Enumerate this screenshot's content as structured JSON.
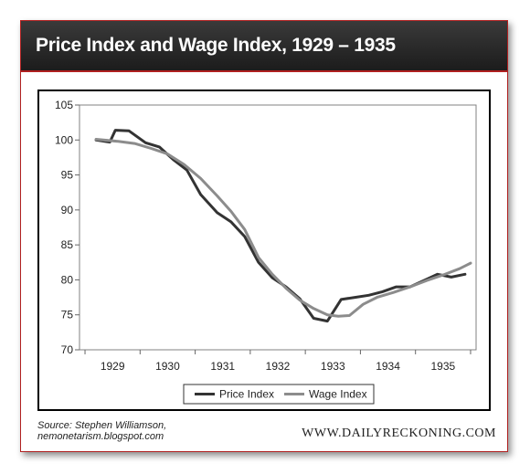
{
  "header": {
    "title": "Price Index and Wage Index, 1929 – 1935"
  },
  "footer": {
    "source_line1": "Source: Stephen Williamson,",
    "source_line2": "nemonetarism.blogspot.com",
    "website": "WWW.DAILYRECKONING.COM"
  },
  "colors": {
    "price": "#333333",
    "wage": "#8c8c8c",
    "accent": "#b02020",
    "header_bg": "#2a2a2a"
  },
  "chart_data": {
    "type": "line",
    "title": "",
    "xlabel": "",
    "ylabel": "",
    "xlim": [
      1928.4,
      1935.6
    ],
    "ylim": [
      70,
      105
    ],
    "yticks": [
      "70",
      "75",
      "80",
      "85",
      "90",
      "95",
      "100",
      "105"
    ],
    "xticks": [
      "1929",
      "1930",
      "1931",
      "1932",
      "1933",
      "1934",
      "1935"
    ],
    "grid": false,
    "legend": "bottom",
    "series": [
      {
        "name": "Price Index",
        "color": "#333333",
        "x": [
          1928.7,
          1928.95,
          1929.05,
          1929.3,
          1929.6,
          1929.85,
          1930.1,
          1930.35,
          1930.6,
          1930.9,
          1931.15,
          1931.4,
          1931.65,
          1931.9,
          1932.15,
          1932.4,
          1932.65,
          1932.9,
          1933.15,
          1933.4,
          1933.65,
          1933.9,
          1934.15,
          1934.4,
          1934.65,
          1934.9,
          1935.15,
          1935.4
        ],
        "values": [
          100.0,
          99.7,
          101.4,
          101.3,
          99.6,
          99.0,
          97.2,
          95.7,
          92.2,
          89.6,
          88.3,
          86.2,
          82.5,
          80.3,
          79.0,
          77.3,
          74.5,
          74.1,
          77.2,
          77.5,
          77.8,
          78.3,
          79.0,
          79.0,
          79.9,
          80.8,
          80.4,
          80.8
        ]
      },
      {
        "name": "Wage Index",
        "color": "#8c8c8c",
        "x": [
          1928.7,
          1929.1,
          1929.4,
          1929.7,
          1930.0,
          1930.3,
          1930.6,
          1930.9,
          1931.15,
          1931.4,
          1931.65,
          1931.9,
          1932.15,
          1932.4,
          1932.65,
          1932.9,
          1933.1,
          1933.3,
          1933.55,
          1933.8,
          1934.1,
          1934.4,
          1934.7,
          1935.0,
          1935.3,
          1935.5
        ],
        "values": [
          100.1,
          99.8,
          99.5,
          98.8,
          98.0,
          96.5,
          94.5,
          92.0,
          89.8,
          87.2,
          83.2,
          80.8,
          78.8,
          77.1,
          75.9,
          75.0,
          74.8,
          74.9,
          76.5,
          77.5,
          78.2,
          79.0,
          79.9,
          80.7,
          81.6,
          82.4
        ]
      }
    ]
  }
}
